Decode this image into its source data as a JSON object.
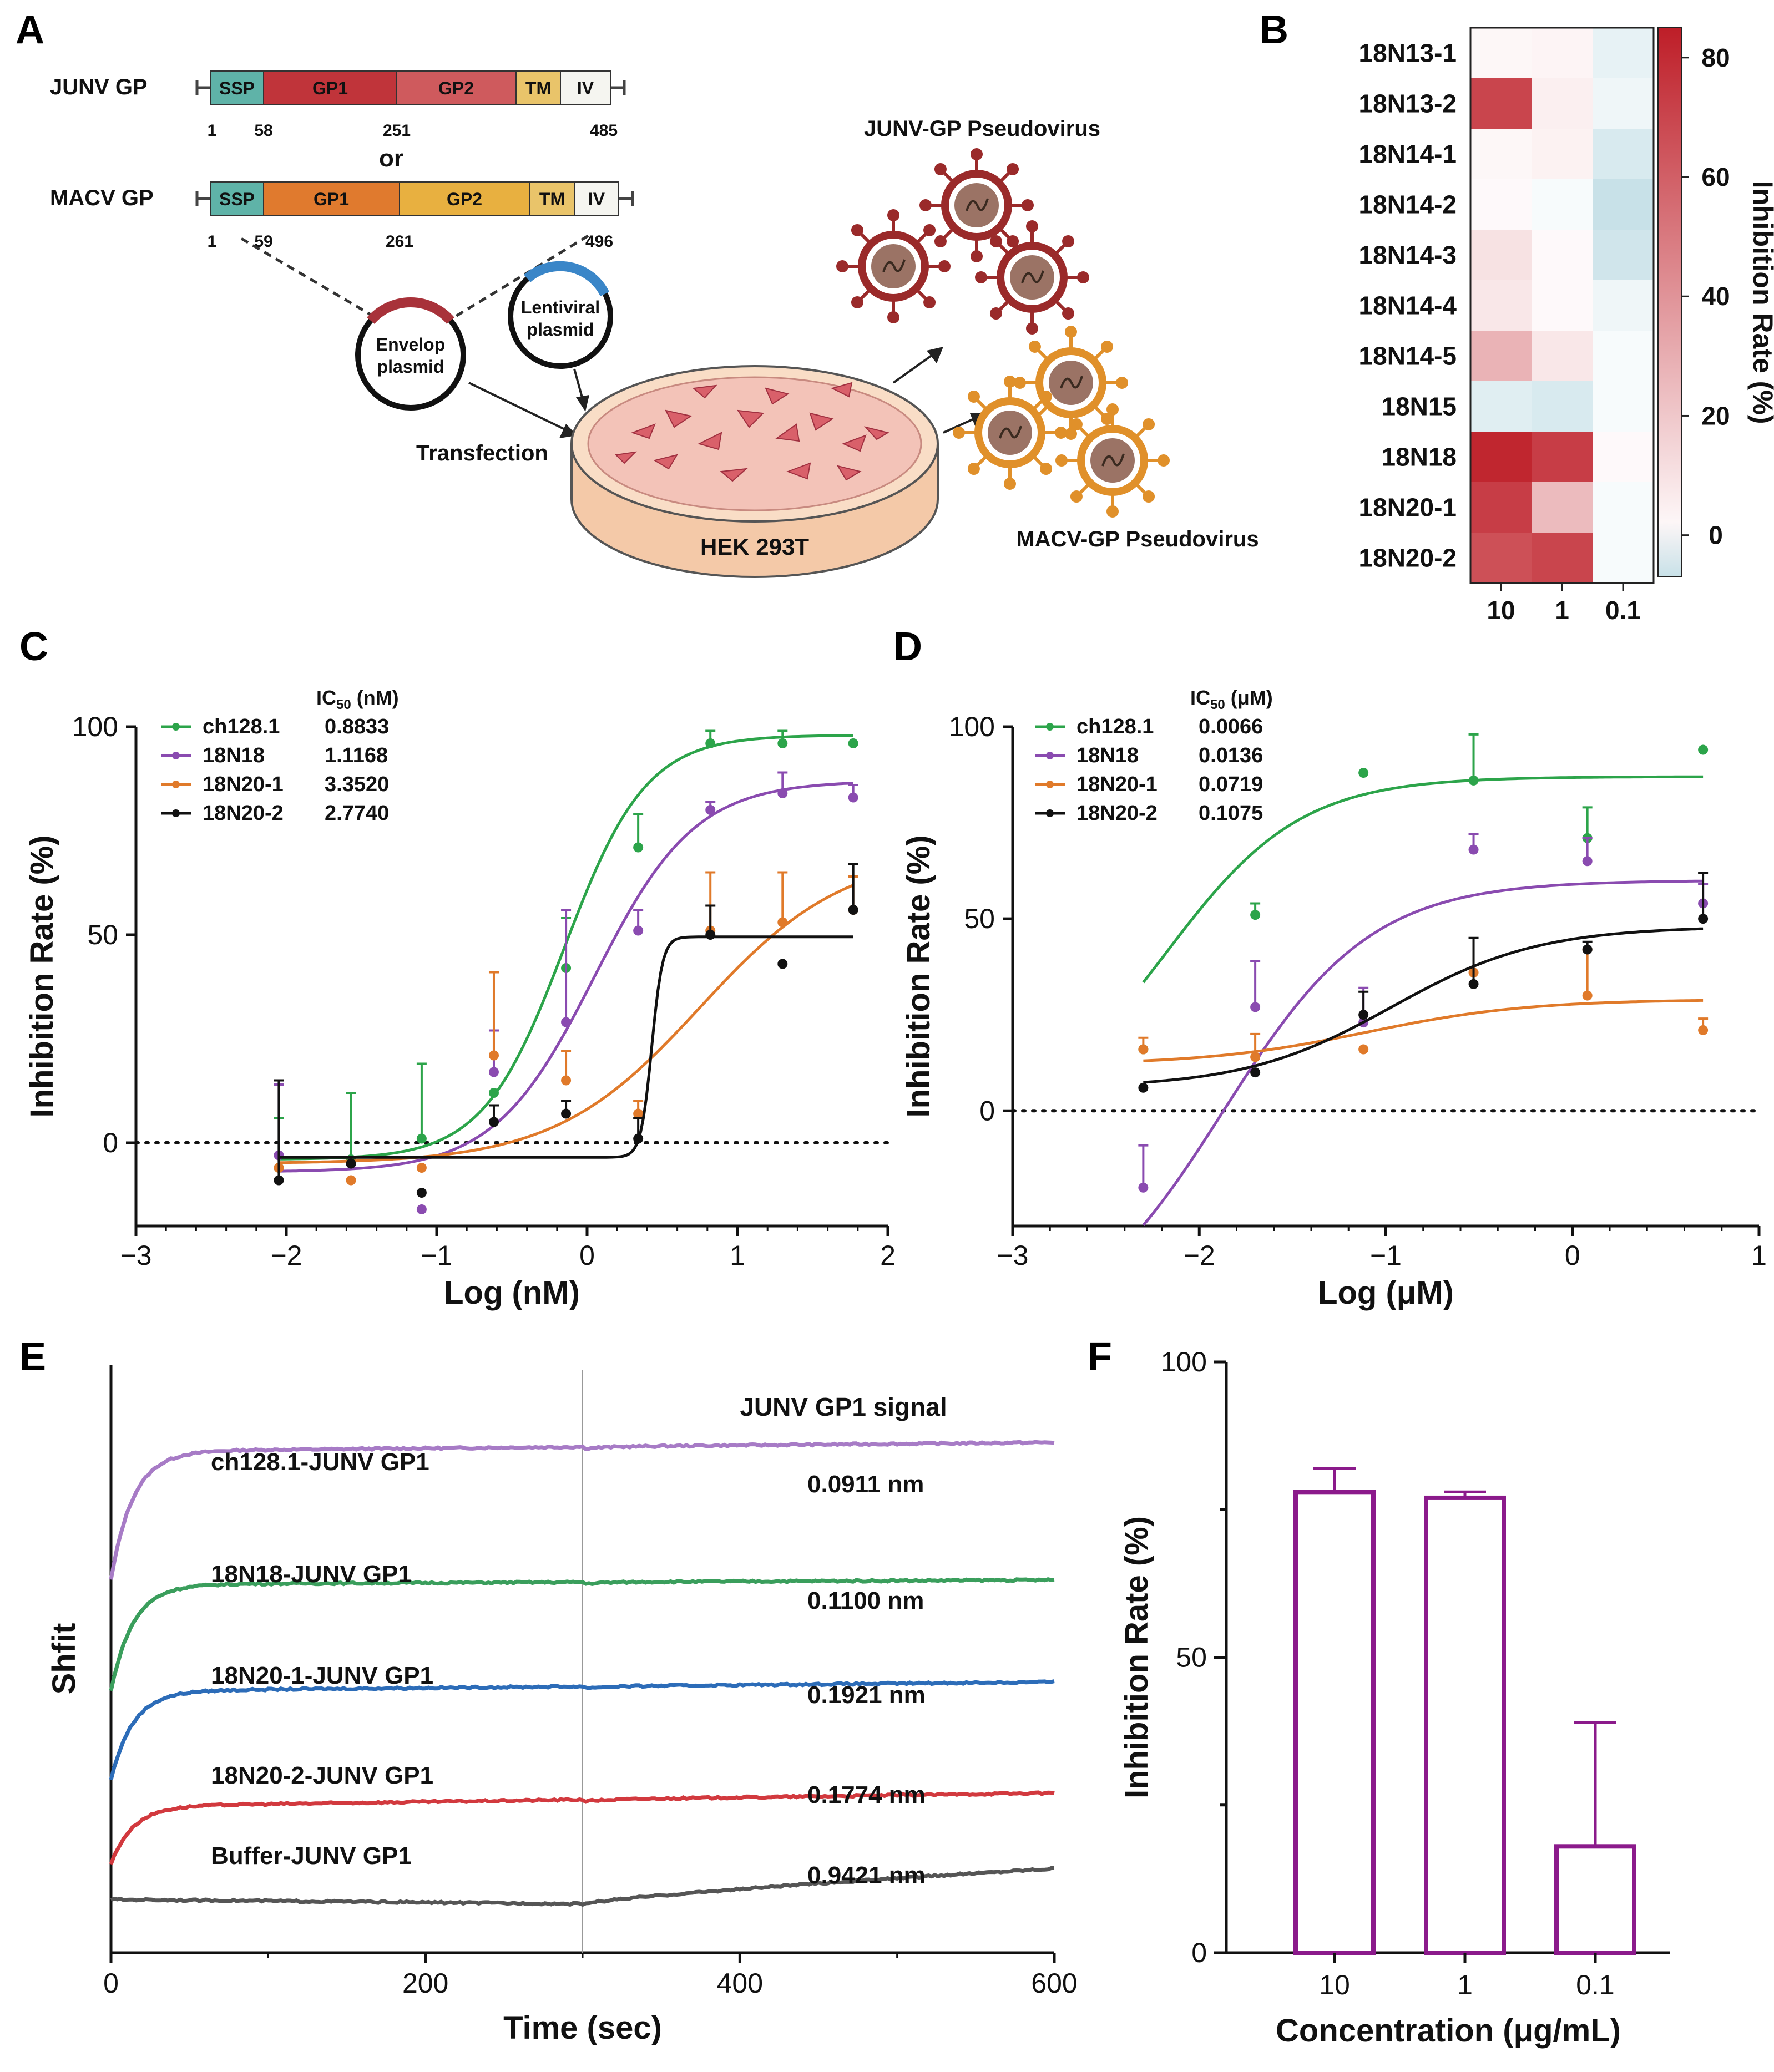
{
  "panels": {
    "A": {
      "letter": "A",
      "junv": {
        "label": "JUNV GP",
        "segments": [
          "SSP",
          "GP1",
          "GP2",
          "TM",
          "IV"
        ],
        "positions": [
          "1",
          "58",
          "251",
          "485"
        ]
      },
      "or_text": "or",
      "macv": {
        "label": "MACV GP",
        "segments": [
          "SSP",
          "GP1",
          "GP2",
          "TM",
          "IV"
        ],
        "positions": [
          "1",
          "59",
          "261",
          "496"
        ]
      },
      "envelop_plasmid": [
        "Envelop",
        "plasmid"
      ],
      "lentiviral_plasmid": [
        "Lentiviral",
        "plasmid"
      ],
      "transfection": "Transfection",
      "cell_line": "HEK 293T",
      "junv_pseudovirus": "JUNV-GP Pseudovirus",
      "macv_pseudovirus": "MACV-GP Pseudovirus",
      "colors": {
        "ssp": "#5fb3a8",
        "junv_gp1": "#c0343a",
        "junv_gp2": "#cf5a5d",
        "macv_gp1": "#e07a2e",
        "macv_gp2": "#e8b040",
        "tm": "#e9c46a",
        "iv": "#f5f5f0",
        "junv_virus": "#9a2a2a",
        "macv_virus": "#e0902a"
      }
    },
    "B": {
      "letter": "B",
      "colorbar_label": "Inhibition Rate (%)",
      "colorbar_ticks": [
        "0",
        "20",
        "40",
        "60",
        "80"
      ]
    },
    "C": {
      "letter": "C",
      "legend_title": "IC",
      "legend_sub": "50",
      "legend_unit": " (nM)"
    },
    "D": {
      "letter": "D",
      "legend_title": "IC",
      "legend_sub": "50",
      "legend_unit": " (μM)"
    },
    "E": {
      "letter": "E"
    },
    "F": {
      "letter": "F"
    }
  },
  "chart_data": [
    {
      "panel": "B",
      "type": "heatmap",
      "rows": [
        "18N13-1",
        "18N13-2",
        "18N14-1",
        "18N14-2",
        "18N14-3",
        "18N14-4",
        "18N14-5",
        "18N15",
        "18N18",
        "18N20-1",
        "18N20-2"
      ],
      "columns": [
        "10",
        "1",
        "0.1"
      ],
      "values": [
        [
          2,
          3,
          -3
        ],
        [
          70,
          5,
          -2
        ],
        [
          2,
          4,
          -5
        ],
        [
          1,
          -1,
          -7
        ],
        [
          10,
          1,
          -6
        ],
        [
          8,
          1,
          -2
        ],
        [
          28,
          8,
          -1
        ],
        [
          -4,
          -5,
          -1
        ],
        [
          82,
          73,
          1
        ],
        [
          73,
          25,
          -1
        ],
        [
          66,
          70,
          -1
        ]
      ],
      "colorbar_range": [
        -7,
        85
      ],
      "colorbar_label": "Inhibition Rate (%)"
    },
    {
      "panel": "C",
      "type": "scatter",
      "xlabel": "Log (nM)",
      "ylabel": "Inhibition Rate (%)",
      "xlim": [
        -3,
        2
      ],
      "ylim": [
        -20,
        100
      ],
      "xticks": [
        -3,
        -2,
        -1,
        0,
        1,
        2
      ],
      "yticks": [
        0,
        50,
        100
      ],
      "series": [
        {
          "name": "ch128.1",
          "ic50": "0.8833",
          "color": "#2ca44a",
          "x": [
            -2.05,
            -1.57,
            -1.1,
            -0.62,
            -0.14,
            0.34,
            0.82,
            1.3,
            1.77
          ],
          "y": [
            -6,
            -4,
            1,
            12,
            42,
            71,
            96,
            96,
            96
          ],
          "err": [
            12,
            16,
            18,
            0,
            12,
            8,
            3,
            3,
            0
          ],
          "fit": {
            "bottom": -4,
            "top": 98,
            "logec50": -0.15,
            "hill": 1.6
          }
        },
        {
          "name": "18N18",
          "ic50": "1.1168",
          "color": "#8a4bb0",
          "x": [
            -2.05,
            -1.57,
            -1.1,
            -0.62,
            -0.14,
            0.34,
            0.82,
            1.3,
            1.77
          ],
          "y": [
            -3,
            -5,
            -16,
            17,
            29,
            51,
            80,
            84,
            83
          ],
          "err": [
            17,
            0,
            0,
            10,
            27,
            5,
            2,
            5,
            3
          ],
          "fit": {
            "bottom": -7,
            "top": 87,
            "logec50": 0.05,
            "hill": 1.3
          }
        },
        {
          "name": "18N20-1",
          "ic50": "3.3520",
          "color": "#e07a2a",
          "x": [
            -2.05,
            -1.57,
            -1.1,
            -0.62,
            -0.14,
            0.34,
            0.82,
            1.3,
            1.77
          ],
          "y": [
            -6,
            -9,
            -6,
            21,
            15,
            7,
            51,
            53,
            56
          ],
          "err": [
            0,
            0,
            0,
            20,
            7,
            3,
            14,
            12,
            8
          ],
          "fit": {
            "bottom": -5,
            "top": 70,
            "logec50": 0.75,
            "hill": 0.9
          }
        },
        {
          "name": "18N20-2",
          "ic50": "2.7740",
          "color": "#111111",
          "x": [
            -2.05,
            -1.57,
            -1.1,
            -0.62,
            -0.14,
            0.34,
            0.82,
            1.3,
            1.77
          ],
          "y": [
            -9,
            -5,
            -12,
            5,
            7,
            1,
            50,
            43,
            56
          ],
          "err": [
            24,
            0,
            0,
            4,
            3,
            5,
            7,
            0,
            11
          ],
          "fit": {
            "bottom": -3.5,
            "top": 49.5,
            "logec50": 0.43,
            "hill": 12
          }
        }
      ],
      "legend_header": "IC50 (nM)"
    },
    {
      "panel": "D",
      "type": "scatter",
      "xlabel": "Log (μM)",
      "ylabel": "Inhibition Rate (%)",
      "xlim": [
        -3,
        1
      ],
      "ylim": [
        -30,
        100
      ],
      "xticks": [
        -3,
        -2,
        -1,
        0,
        1
      ],
      "yticks": [
        0,
        50,
        100
      ],
      "series": [
        {
          "name": "ch128.1",
          "ic50": "0.0066",
          "color": "#2ca44a",
          "x": [
            -2.3,
            -1.7,
            -1.12,
            -0.53,
            0.08,
            0.7
          ],
          "y": [
            16,
            51,
            88,
            86,
            71,
            94
          ],
          "err": [
            0,
            3,
            0,
            12,
            8,
            0
          ],
          "fit": {
            "bottom": -5,
            "top": 87,
            "logec50": -2.18,
            "hill": 1.2
          }
        },
        {
          "name": "18N18",
          "ic50": "0.0136",
          "color": "#8a4bb0",
          "x": [
            -2.3,
            -1.7,
            -1.12,
            -0.53,
            0.08,
            0.7
          ],
          "y": [
            -20,
            27,
            23,
            68,
            65,
            54
          ],
          "err": [
            11,
            12,
            9,
            4,
            6,
            5
          ],
          "fit": {
            "bottom": -60,
            "top": 60,
            "logec50": -1.87,
            "hill": 1.1
          }
        },
        {
          "name": "18N20-1",
          "ic50": "0.0719",
          "color": "#e07a2a",
          "x": [
            -2.3,
            -1.7,
            -1.12,
            -0.53,
            0.08,
            0.7
          ],
          "y": [
            16,
            14,
            16,
            36,
            30,
            21
          ],
          "err": [
            3,
            6,
            0,
            0,
            12,
            3
          ],
          "fit": {
            "bottom": 12,
            "top": 29,
            "logec50": -1.1,
            "hill": 1.0
          }
        },
        {
          "name": "18N20-2",
          "ic50": "0.1075",
          "color": "#111111",
          "x": [
            -2.3,
            -1.7,
            -1.12,
            -0.53,
            0.08,
            0.7
          ],
          "y": [
            6,
            10,
            25,
            33,
            42,
            50
          ],
          "err": [
            0,
            0,
            6,
            12,
            2,
            12
          ],
          "fit": {
            "bottom": 6,
            "top": 48,
            "logec50": -0.97,
            "hill": 1.1
          }
        }
      ],
      "legend_header": "IC50 (μM)"
    },
    {
      "panel": "E",
      "type": "line",
      "title": "JUNV GP1 signal",
      "xlabel": "Time (sec)",
      "ylabel": "Shfit",
      "xlim": [
        0,
        600
      ],
      "xticks": [
        0,
        200,
        400,
        600
      ],
      "marker_x": 300,
      "series": [
        {
          "name": "ch128.1-JUNV GP1",
          "value_label": "0.0911 nm",
          "color": "#a77bc6",
          "start": 4.2,
          "plateau": 5.65,
          "end": 5.75
        },
        {
          "name": "18N18-JUNV GP1",
          "value_label": "0.1100 nm",
          "color": "#3a9e5c",
          "start": 2.95,
          "plateau": 4.15,
          "end": 4.2
        },
        {
          "name": "18N20-1-JUNV GP1",
          "value_label": "0.1921 nm",
          "color": "#2c6cb8",
          "start": 1.95,
          "plateau": 2.95,
          "end": 3.05
        },
        {
          "name": "18N20-2-JUNV GP1",
          "value_label": "0.1774 nm",
          "color": "#d2393e",
          "start": 1.0,
          "plateau": 1.65,
          "end": 1.8
        },
        {
          "name": "Buffer-JUNV GP1",
          "value_label": "0.9421 nm",
          "color": "#555555",
          "start": 0.6,
          "plateau": 0.55,
          "end": 0.95
        }
      ]
    },
    {
      "panel": "F",
      "type": "bar",
      "xlabel": "Concentration (μg/mL)",
      "ylabel": "Inhibition Rate (%)",
      "categories": [
        "10",
        "1",
        "0.1"
      ],
      "values": [
        78,
        77,
        18
      ],
      "errors": [
        4,
        1,
        21
      ],
      "ylim": [
        0,
        100
      ],
      "yticks": [
        0,
        50,
        100
      ],
      "color": "#8b1a8b"
    }
  ]
}
